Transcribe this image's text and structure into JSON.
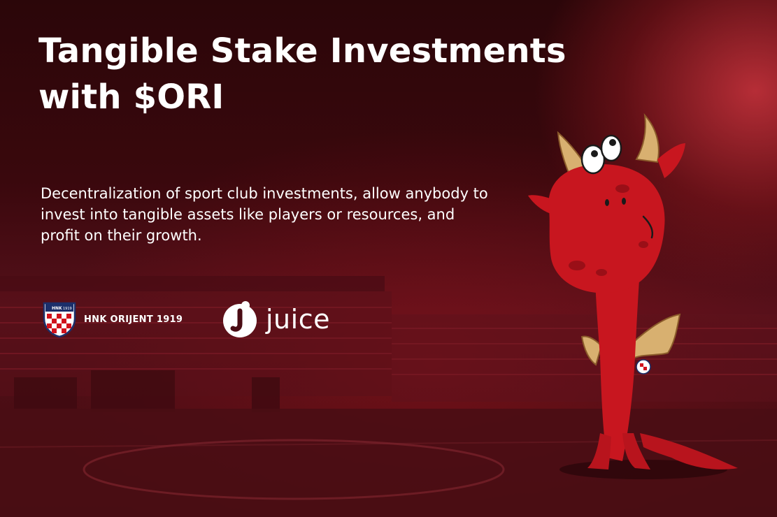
{
  "headline": {
    "line1": "Tangible Stake Investments",
    "line2": "with $ORI"
  },
  "description": "Decentralization of sport club investments, allow anybody to invest into tangible assets like players or resources, and profit on their growth.",
  "partners": {
    "club": {
      "badge_year": "1919",
      "badge_top": "HNK",
      "name": "HNK ORIJENT 1919",
      "icon": "club-crest-icon"
    },
    "juice": {
      "name": "juice",
      "icon": "juice-logo-icon"
    }
  },
  "mascot": {
    "icon": "red-dragon-mascot"
  },
  "colors": {
    "background_dark": "#2a0508",
    "background_red": "#55101a",
    "glow": "#cd343e",
    "dragon_red": "#c8161f",
    "horn": "#d8b070",
    "text": "#ffffff"
  }
}
